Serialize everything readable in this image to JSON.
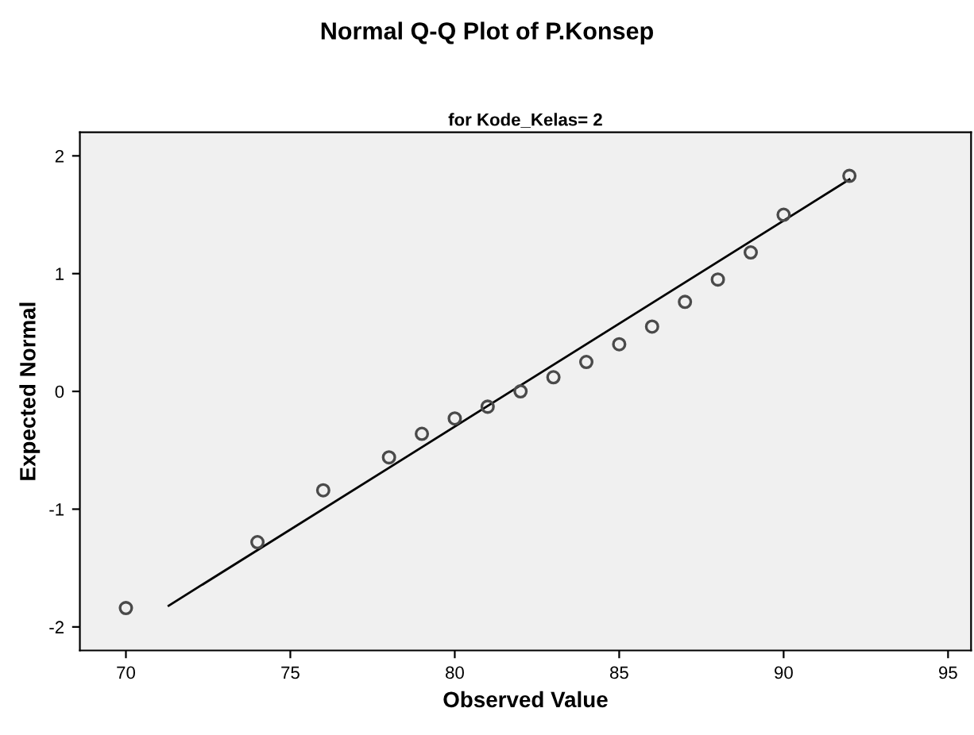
{
  "chart_data": {
    "type": "scatter",
    "title": "Normal Q-Q Plot of P.Konsep",
    "subtitle": "for Kode_Kelas= 2",
    "xlabel": "Observed Value",
    "ylabel": "Expected Normal",
    "xlim": [
      68.6,
      95.7
    ],
    "ylim": [
      -2.2,
      2.2
    ],
    "xticks": [
      70,
      75,
      80,
      85,
      90,
      95
    ],
    "yticks": [
      -2,
      -1,
      0,
      1,
      2
    ],
    "grid": false,
    "legend": false,
    "series": [
      {
        "marker": "circle",
        "color": "#4a4a4a",
        "x": [
          70,
          74,
          76,
          78,
          79,
          80,
          81,
          82,
          83,
          84,
          85,
          86,
          87,
          88,
          89,
          90,
          92
        ],
        "values": [
          -1.84,
          -1.28,
          -0.84,
          -0.56,
          -0.36,
          -0.23,
          -0.13,
          0,
          0.12,
          0.25,
          0.4,
          0.55,
          0.76,
          0.95,
          1.18,
          1.5,
          1.83
        ]
      },
      {
        "type": "line",
        "marker": "none",
        "color": "#000000",
        "line_style": "solid",
        "x": [
          71.3,
          92
        ],
        "values": [
          -1.82,
          1.8
        ]
      }
    ]
  }
}
